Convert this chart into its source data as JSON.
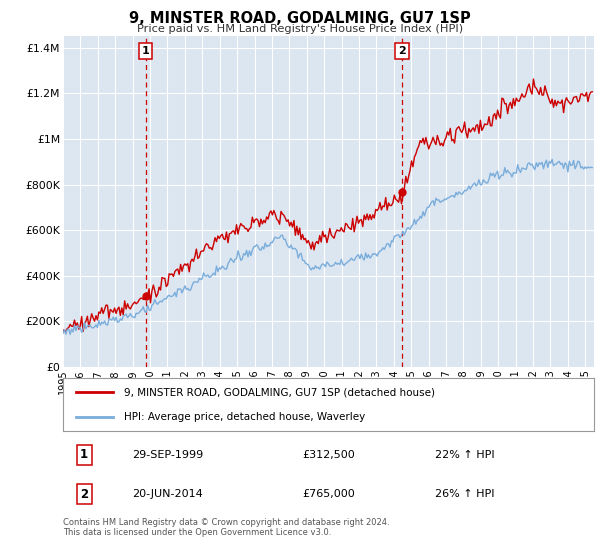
{
  "title": "9, MINSTER ROAD, GODALMING, GU7 1SP",
  "subtitle": "Price paid vs. HM Land Registry's House Price Index (HPI)",
  "background_color": "#ffffff",
  "plot_bg_color": "#dce6f1",
  "grid_color": "#ffffff",
  "ylim": [
    0,
    1450000
  ],
  "yticks": [
    0,
    200000,
    400000,
    600000,
    800000,
    1000000,
    1200000,
    1400000
  ],
  "ytick_labels": [
    "£0",
    "£200K",
    "£400K",
    "£600K",
    "£800K",
    "£1M",
    "£1.2M",
    "£1.4M"
  ],
  "xlim_start": 1995.0,
  "xlim_end": 2025.5,
  "xtick_years": [
    1995,
    1996,
    1997,
    1998,
    1999,
    2000,
    2001,
    2002,
    2003,
    2004,
    2005,
    2006,
    2007,
    2008,
    2009,
    2010,
    2011,
    2012,
    2013,
    2014,
    2015,
    2016,
    2017,
    2018,
    2019,
    2020,
    2021,
    2022,
    2023,
    2024,
    2025
  ],
  "sale1_x": 1999.75,
  "sale1_y": 312500,
  "sale1_label": "1",
  "sale1_date": "29-SEP-1999",
  "sale1_price": "£312,500",
  "sale1_hpi": "22% ↑ HPI",
  "sale2_x": 2014.47,
  "sale2_y": 765000,
  "sale2_label": "2",
  "sale2_date": "20-JUN-2014",
  "sale2_price": "£765,000",
  "sale2_hpi": "26% ↑ HPI",
  "line1_color": "#cc0000",
  "line2_color": "#7aaddb",
  "legend1_label": "9, MINSTER ROAD, GODALMING, GU7 1SP (detached house)",
  "legend2_label": "HPI: Average price, detached house, Waverley",
  "footer": "Contains HM Land Registry data © Crown copyright and database right 2024.\nThis data is licensed under the Open Government Licence v3.0.",
  "marker_color": "#cc0000",
  "vline_color": "#cc0000"
}
